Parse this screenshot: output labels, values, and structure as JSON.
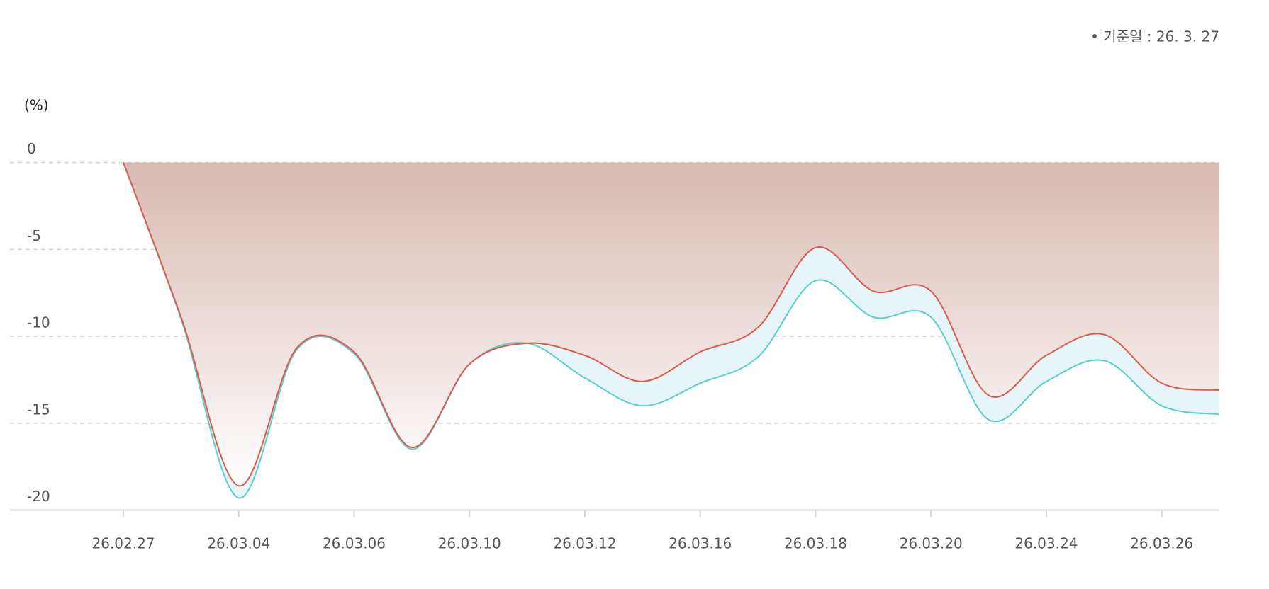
{
  "chart_data": {
    "type": "line",
    "note": "• 기준일 : 26. 3. 27",
    "y_label": "(%)",
    "categories": [
      "26.02.27",
      null,
      "26.03.04",
      null,
      "26.03.06",
      null,
      "26.03.10",
      null,
      "26.03.12",
      null,
      "26.03.16",
      null,
      "26.03.18",
      null,
      "26.03.20",
      null,
      "26.03.24",
      null,
      "26.03.26",
      null
    ],
    "series": [
      {
        "color": "#5bcfc9",
        "values": [
          0,
          -9.0,
          -19.3,
          -10.8,
          -11.0,
          -16.5,
          -11.6,
          -10.4,
          -12.4,
          -14.0,
          -12.7,
          -11.2,
          -6.8,
          -8.9,
          -8.9,
          -14.8,
          -12.6,
          -11.4,
          -14.0,
          -14.5
        ]
      },
      {
        "color": "#dd5a50",
        "values": [
          0,
          -8.9,
          -18.6,
          -10.7,
          -10.9,
          -16.4,
          -11.6,
          -10.4,
          -11.1,
          -12.6,
          -10.9,
          -9.5,
          -4.9,
          -7.4,
          -7.4,
          -13.4,
          -11.1,
          -9.9,
          -12.7,
          -13.1
        ]
      }
    ],
    "ylim": [
      -20,
      0
    ],
    "yticks": [
      0,
      -5,
      -10,
      -15,
      -20
    ],
    "grid": true
  }
}
